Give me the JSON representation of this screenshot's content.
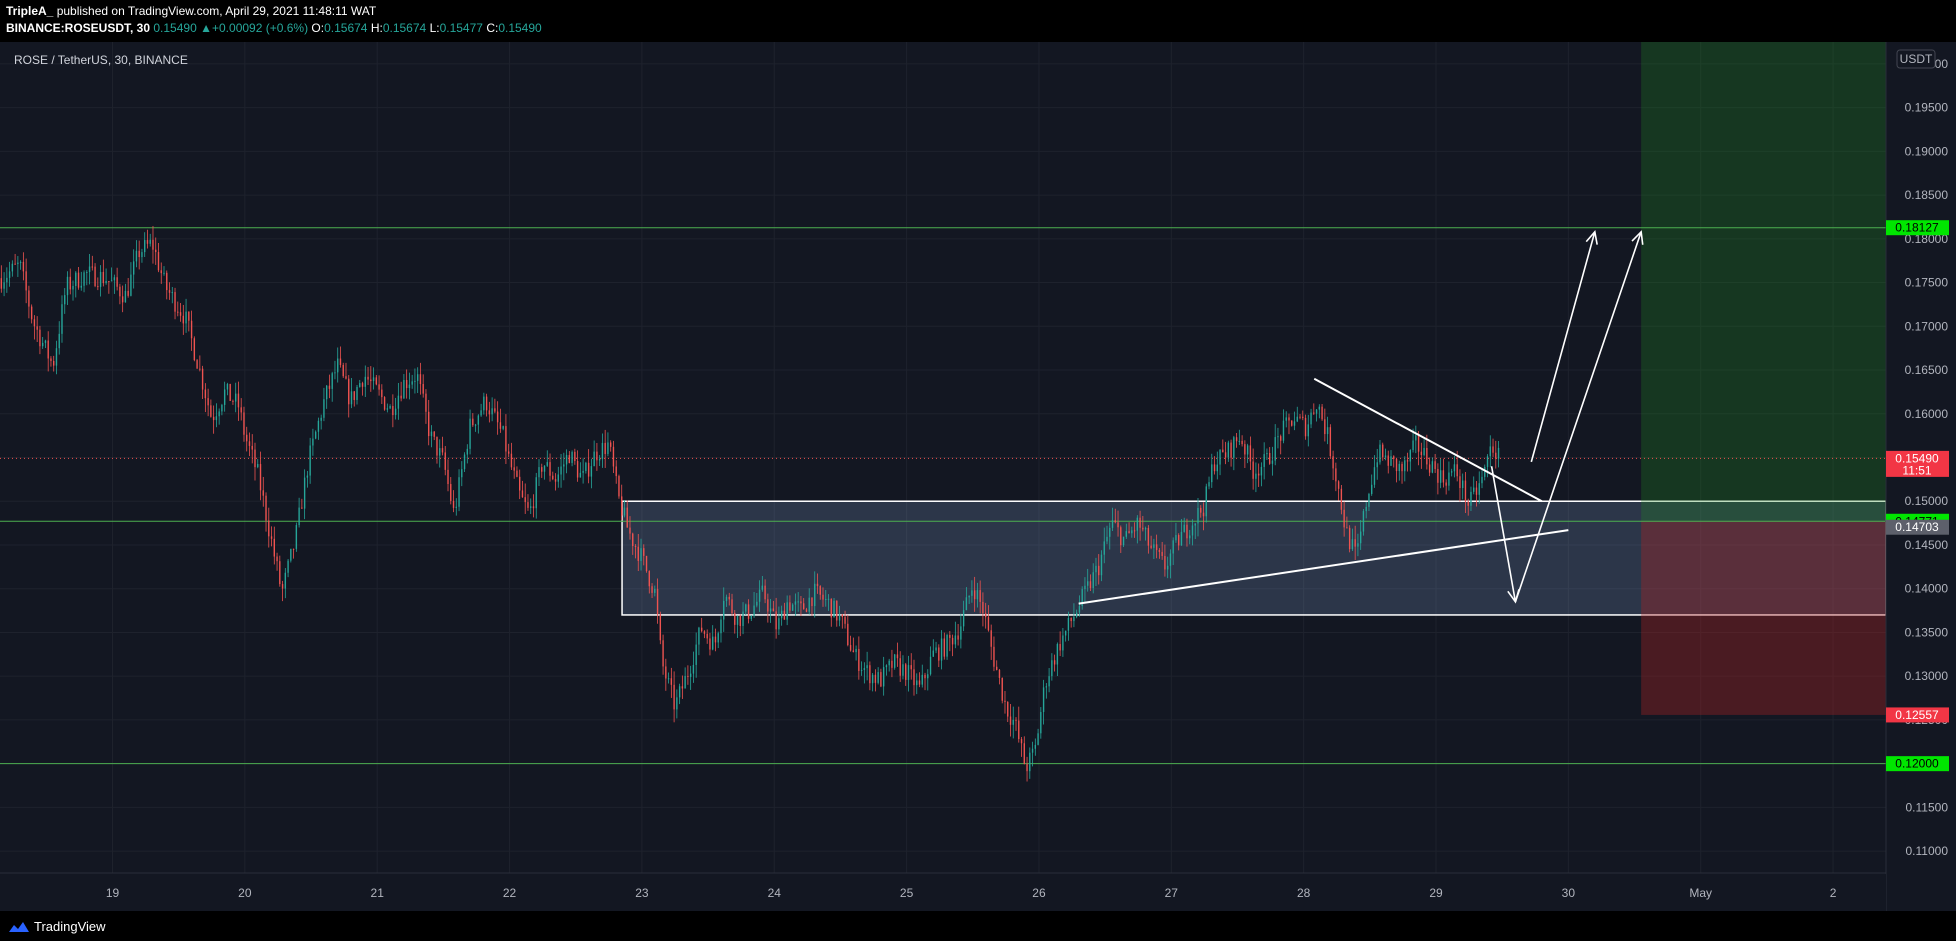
{
  "header": {
    "author": "TripleA_",
    "published_text": "published on TradingView.com, April 29, 2021 11:48:11 WAT",
    "symbol": "BINANCE:ROSEUSDT, 30",
    "last": "0.15490",
    "change": "+0.00092 (+0.6%)",
    "o_label": "O:",
    "o_value": "0.15674",
    "h_label": "H:",
    "h_value": "0.15674",
    "l_label": "L:",
    "l_value": "0.15477",
    "c_label": "C:",
    "c_value": "0.15490"
  },
  "footer": {
    "brand": "TradingView"
  },
  "chart_data": {
    "type": "candlestick",
    "title": "ROSE / TetherUS, 30, BINANCE",
    "currency": "USDT",
    "y_range": [
      0.1075,
      0.2025
    ],
    "x_day_range": [
      18.15,
      32.4
    ],
    "y_ticks": [
      "0.20000",
      "0.19500",
      "0.19000",
      "0.18500",
      "0.18000",
      "0.17500",
      "0.17000",
      "0.16500",
      "0.16000",
      "0.15500",
      "0.15000",
      "0.14500",
      "0.14000",
      "0.13500",
      "0.13000",
      "0.12500",
      "0.12000",
      "0.11500",
      "0.11000"
    ],
    "x_ticks": [
      {
        "day": 19,
        "label": "19"
      },
      {
        "day": 20,
        "label": "20"
      },
      {
        "day": 21,
        "label": "21"
      },
      {
        "day": 22,
        "label": "22"
      },
      {
        "day": 23,
        "label": "23"
      },
      {
        "day": 24,
        "label": "24"
      },
      {
        "day": 25,
        "label": "25"
      },
      {
        "day": 26,
        "label": "26"
      },
      {
        "day": 27,
        "label": "27"
      },
      {
        "day": 28,
        "label": "28"
      },
      {
        "day": 29,
        "label": "29"
      },
      {
        "day": 30,
        "label": "30"
      },
      {
        "day": 31,
        "label": "May"
      },
      {
        "day": 32,
        "label": "2"
      }
    ],
    "price_path": [
      [
        18.16,
        0.1755
      ],
      [
        18.3,
        0.177
      ],
      [
        18.4,
        0.1705
      ],
      [
        18.55,
        0.1655
      ],
      [
        18.65,
        0.1745
      ],
      [
        18.8,
        0.176
      ],
      [
        18.95,
        0.1755
      ],
      [
        19.1,
        0.1735
      ],
      [
        19.2,
        0.1785
      ],
      [
        19.3,
        0.1795
      ],
      [
        19.4,
        0.1745
      ],
      [
        19.55,
        0.171
      ],
      [
        19.65,
        0.1655
      ],
      [
        19.75,
        0.1595
      ],
      [
        19.85,
        0.1625
      ],
      [
        19.95,
        0.161
      ],
      [
        20.0,
        0.1575
      ],
      [
        20.1,
        0.153
      ],
      [
        20.2,
        0.1455
      ],
      [
        20.28,
        0.1395
      ],
      [
        20.38,
        0.1455
      ],
      [
        20.48,
        0.1545
      ],
      [
        20.6,
        0.1615
      ],
      [
        20.7,
        0.1655
      ],
      [
        20.8,
        0.1615
      ],
      [
        20.9,
        0.1645
      ],
      [
        21.0,
        0.1625
      ],
      [
        21.1,
        0.1605
      ],
      [
        21.2,
        0.1635
      ],
      [
        21.3,
        0.1645
      ],
      [
        21.4,
        0.1575
      ],
      [
        21.5,
        0.1545
      ],
      [
        21.58,
        0.1485
      ],
      [
        21.7,
        0.1585
      ],
      [
        21.82,
        0.1615
      ],
      [
        21.95,
        0.1575
      ],
      [
        22.0,
        0.1545
      ],
      [
        22.08,
        0.1505
      ],
      [
        22.15,
        0.1485
      ],
      [
        22.25,
        0.1545
      ],
      [
        22.35,
        0.1525
      ],
      [
        22.45,
        0.1555
      ],
      [
        22.55,
        0.1525
      ],
      [
        22.65,
        0.1555
      ],
      [
        22.75,
        0.1565
      ],
      [
        22.82,
        0.1505
      ],
      [
        22.9,
        0.1465
      ],
      [
        23.0,
        0.1435
      ],
      [
        23.1,
        0.1395
      ],
      [
        23.15,
        0.1315
      ],
      [
        23.25,
        0.1265
      ],
      [
        23.35,
        0.1305
      ],
      [
        23.45,
        0.1355
      ],
      [
        23.55,
        0.1335
      ],
      [
        23.62,
        0.1395
      ],
      [
        23.72,
        0.1365
      ],
      [
        23.82,
        0.1375
      ],
      [
        23.92,
        0.1395
      ],
      [
        24.02,
        0.1355
      ],
      [
        24.1,
        0.1385
      ],
      [
        24.2,
        0.1375
      ],
      [
        24.3,
        0.1395
      ],
      [
        24.4,
        0.1385
      ],
      [
        24.5,
        0.1365
      ],
      [
        24.6,
        0.1325
      ],
      [
        24.7,
        0.1305
      ],
      [
        24.8,
        0.1295
      ],
      [
        24.9,
        0.1315
      ],
      [
        25.0,
        0.1305
      ],
      [
        25.1,
        0.1285
      ],
      [
        25.2,
        0.1325
      ],
      [
        25.3,
        0.1335
      ],
      [
        25.4,
        0.1355
      ],
      [
        25.5,
        0.1405
      ],
      [
        25.58,
        0.1375
      ],
      [
        25.65,
        0.1325
      ],
      [
        25.75,
        0.1265
      ],
      [
        25.82,
        0.1245
      ],
      [
        25.9,
        0.1195
      ],
      [
        25.97,
        0.1215
      ],
      [
        26.05,
        0.1295
      ],
      [
        26.15,
        0.1335
      ],
      [
        26.25,
        0.1365
      ],
      [
        26.35,
        0.1395
      ],
      [
        26.45,
        0.1425
      ],
      [
        26.55,
        0.1475
      ],
      [
        26.65,
        0.1455
      ],
      [
        26.75,
        0.1475
      ],
      [
        26.85,
        0.1445
      ],
      [
        26.95,
        0.1425
      ],
      [
        27.05,
        0.1455
      ],
      [
        27.15,
        0.1475
      ],
      [
        27.25,
        0.1495
      ],
      [
        27.32,
        0.1545
      ],
      [
        27.42,
        0.1555
      ],
      [
        27.52,
        0.1575
      ],
      [
        27.62,
        0.1535
      ],
      [
        27.72,
        0.1545
      ],
      [
        27.82,
        0.1575
      ],
      [
        27.92,
        0.1595
      ],
      [
        28.02,
        0.1585
      ],
      [
        28.1,
        0.1615
      ],
      [
        28.18,
        0.1575
      ],
      [
        28.25,
        0.1525
      ],
      [
        28.32,
        0.1465
      ],
      [
        28.4,
        0.1435
      ],
      [
        28.48,
        0.1505
      ],
      [
        28.56,
        0.1555
      ],
      [
        28.65,
        0.1545
      ],
      [
        28.75,
        0.1535
      ],
      [
        28.85,
        0.1565
      ],
      [
        28.95,
        0.1545
      ],
      [
        29.05,
        0.1525
      ],
      [
        29.15,
        0.1535
      ],
      [
        29.25,
        0.1495
      ],
      [
        29.35,
        0.1525
      ],
      [
        29.42,
        0.1565
      ],
      [
        29.48,
        0.1549
      ]
    ],
    "hlines": [
      {
        "price": 0.18127,
        "label": "0.18127",
        "color": "#4caf50",
        "badge_bg": "#00e600",
        "badge_fg": "#000000"
      },
      {
        "price": 0.14771,
        "label": "0.14771",
        "color": "#4caf50",
        "badge_bg": "#00e600",
        "badge_fg": "#000000"
      },
      {
        "price": 0.12,
        "label": "0.12000",
        "color": "#4caf50",
        "badge_bg": "#00e600",
        "badge_fg": "#000000"
      }
    ],
    "last_price": {
      "price": 0.1549,
      "label": "0.15490",
      "countdown": "11:51"
    },
    "extra_badges": [
      {
        "price": 0.14703,
        "label": "0.14703",
        "bg": "#5d606b",
        "fg": "#ffffff"
      },
      {
        "price": 0.12557,
        "label": "0.12557",
        "bg": "#f23645",
        "fg": "#ffffff"
      }
    ],
    "range_box": {
      "x0": 22.85,
      "x1": 32.4,
      "top": 0.15,
      "bottom": 0.137
    },
    "position": {
      "x0": 30.55,
      "x1": 32.4,
      "entry": 0.14771,
      "target": 0.2025,
      "stop": 0.12557
    },
    "lines": [
      {
        "from": [
          26.3,
          0.1383
        ],
        "to": [
          30.0,
          0.1467
        ]
      },
      {
        "from": [
          28.08,
          0.164
        ],
        "to": [
          29.8,
          0.15
        ]
      }
    ],
    "arrows": [
      {
        "from": [
          29.42,
          0.154
        ],
        "to": [
          29.6,
          0.1385
        ]
      },
      {
        "from": [
          29.6,
          0.1385
        ],
        "to": [
          30.55,
          0.1808
        ]
      },
      {
        "from": [
          29.72,
          0.1545
        ],
        "to": [
          30.2,
          0.1808
        ]
      }
    ]
  }
}
